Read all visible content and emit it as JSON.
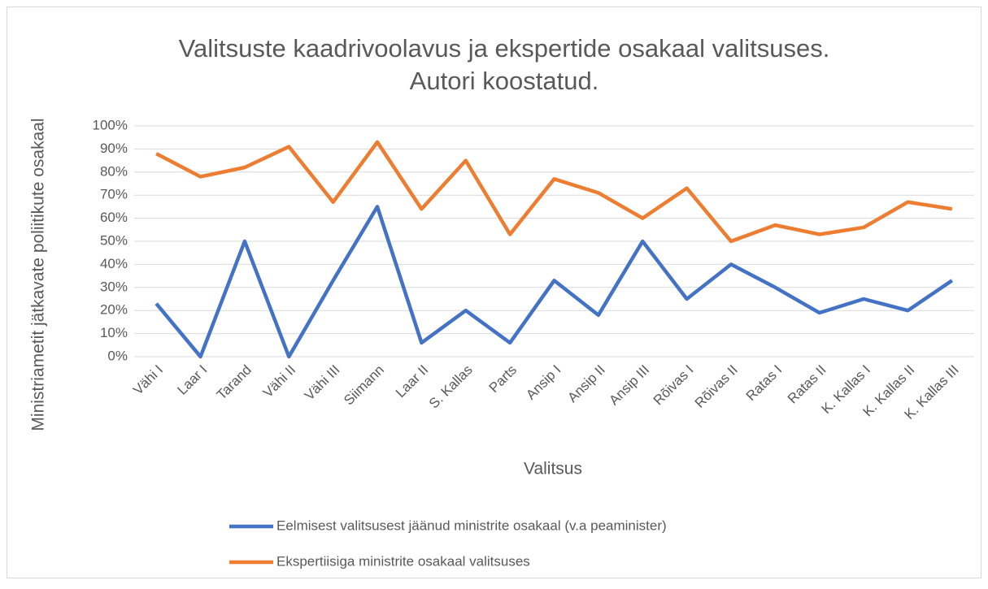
{
  "chart_data": {
    "type": "line",
    "title": [
      "Valitsuste kaadrivoolavus ja ekspertide osakaal valitsuses.",
      "Autori koostatud."
    ],
    "x_label": "Valitsus",
    "y_label": "Ministriametit jätkavate poliitikute osakaal",
    "categories": [
      "Vähi I",
      "Laar I",
      "Tarand",
      "Vähi II",
      "Vähi III",
      "Siimann",
      "Laar II",
      "S. Kallas",
      "Parts",
      "Ansip I",
      "Ansip II",
      "Ansip III",
      "Rõivas I",
      "Rõivas II",
      "Ratas I",
      "Ratas II",
      "K. Kallas I",
      "K. Kallas II",
      "K. Kallas III"
    ],
    "series": [
      {
        "name": "Eelmisest valitsusest jäänud ministrite osakaal (v.a peaminister)",
        "color": "#4472c4",
        "values": [
          23,
          0,
          50,
          0,
          33,
          65,
          6,
          20,
          6,
          33,
          18,
          50,
          25,
          40,
          30,
          19,
          25,
          20,
          33
        ]
      },
      {
        "name": "Ekspertiisiga ministrite osakaal valitsuses",
        "color": "#ed7d31",
        "values": [
          88,
          78,
          82,
          91,
          67,
          93,
          64,
          85,
          53,
          77,
          71,
          60,
          73,
          50,
          57,
          53,
          56,
          67,
          64
        ]
      }
    ],
    "ylim": [
      0,
      100
    ],
    "yticks": [
      {
        "value": 0,
        "label": "0%"
      },
      {
        "value": 10,
        "label": "10%"
      },
      {
        "value": 20,
        "label": "20%"
      },
      {
        "value": 30,
        "label": "30%"
      },
      {
        "value": 40,
        "label": "40%"
      },
      {
        "value": 50,
        "label": "50%"
      },
      {
        "value": 60,
        "label": "60%"
      },
      {
        "value": 70,
        "label": "70%"
      },
      {
        "value": 80,
        "label": "80%"
      },
      {
        "value": 90,
        "label": "90%"
      },
      {
        "value": 100,
        "label": "100%"
      }
    ],
    "grid": true,
    "legend": "bottom"
  }
}
